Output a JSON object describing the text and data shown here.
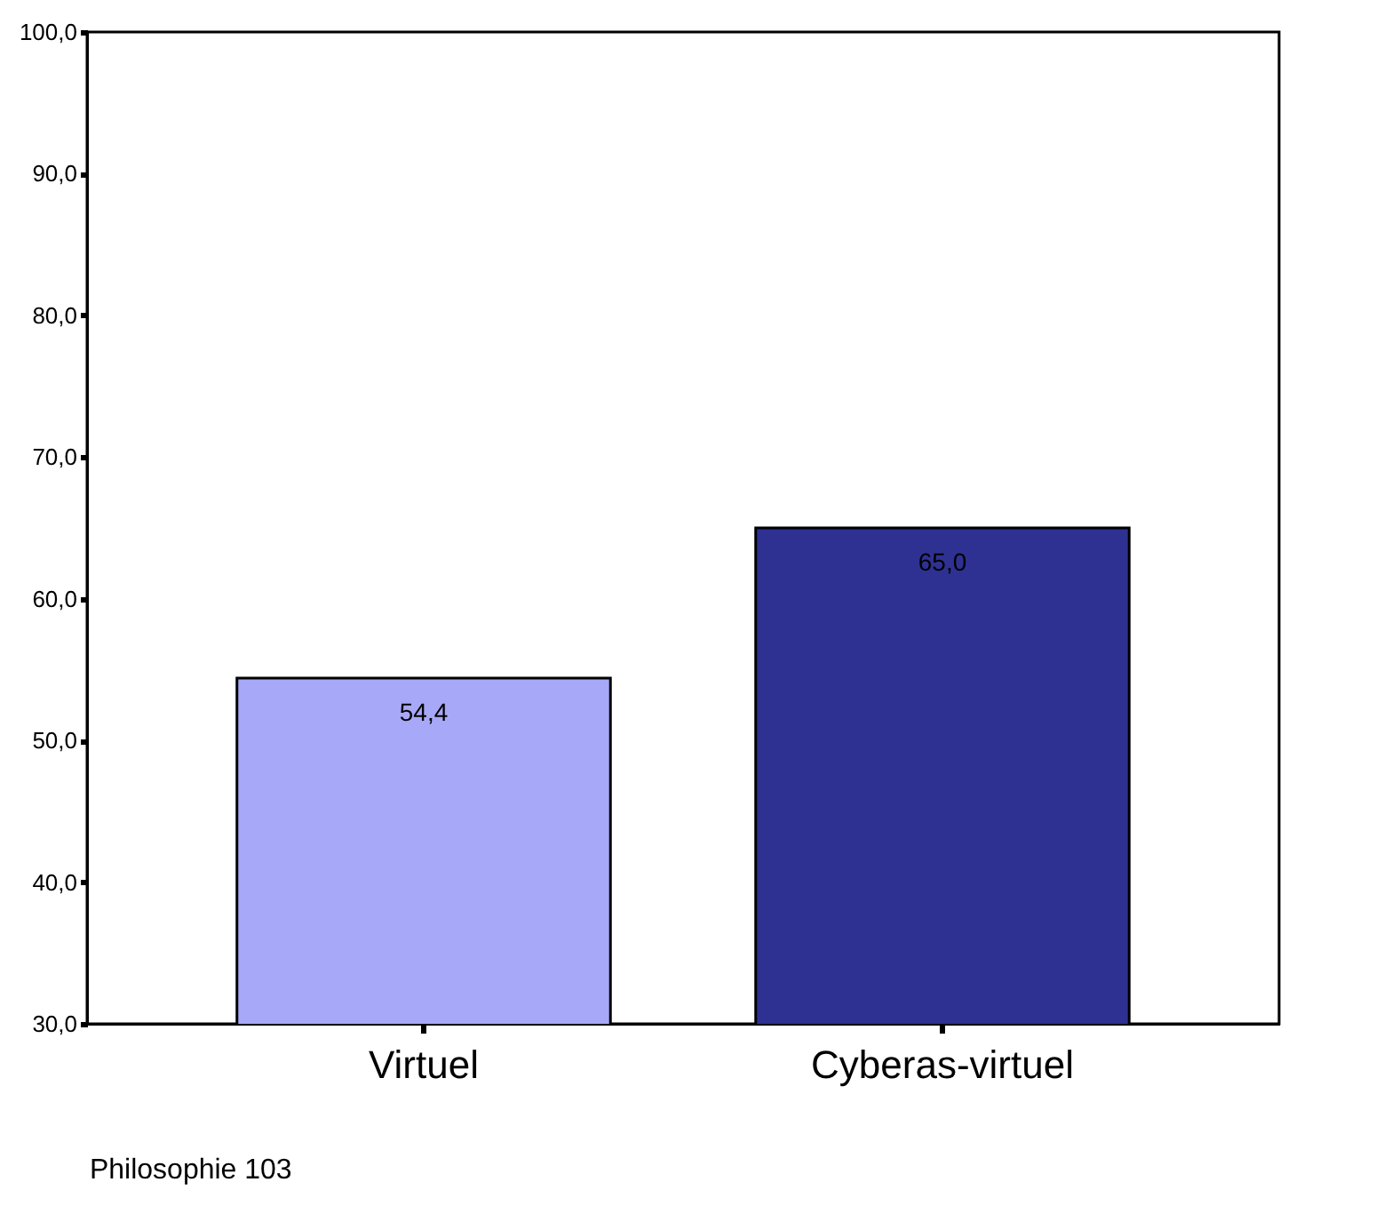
{
  "chart_data": {
    "type": "bar",
    "categories": [
      "Virtuel",
      "Cyberas-virtuel"
    ],
    "values": [
      54.4,
      65.0
    ],
    "colors": [
      "#a8a8f8",
      "#2e3192"
    ],
    "value_labels": [
      "54,4",
      "65,0"
    ],
    "ylim": [
      30,
      100
    ],
    "yticks": [
      {
        "value": 30,
        "label": "30,0"
      },
      {
        "value": 40,
        "label": "40,0"
      },
      {
        "value": 50,
        "label": "50,0"
      },
      {
        "value": 60,
        "label": "60,0"
      },
      {
        "value": 70,
        "label": "70,0"
      },
      {
        "value": 80,
        "label": "80,0"
      },
      {
        "value": 90,
        "label": "90,0"
      },
      {
        "value": 100,
        "label": "100,0"
      }
    ],
    "grid": false,
    "annotations": [
      "Philosophie 103"
    ]
  }
}
